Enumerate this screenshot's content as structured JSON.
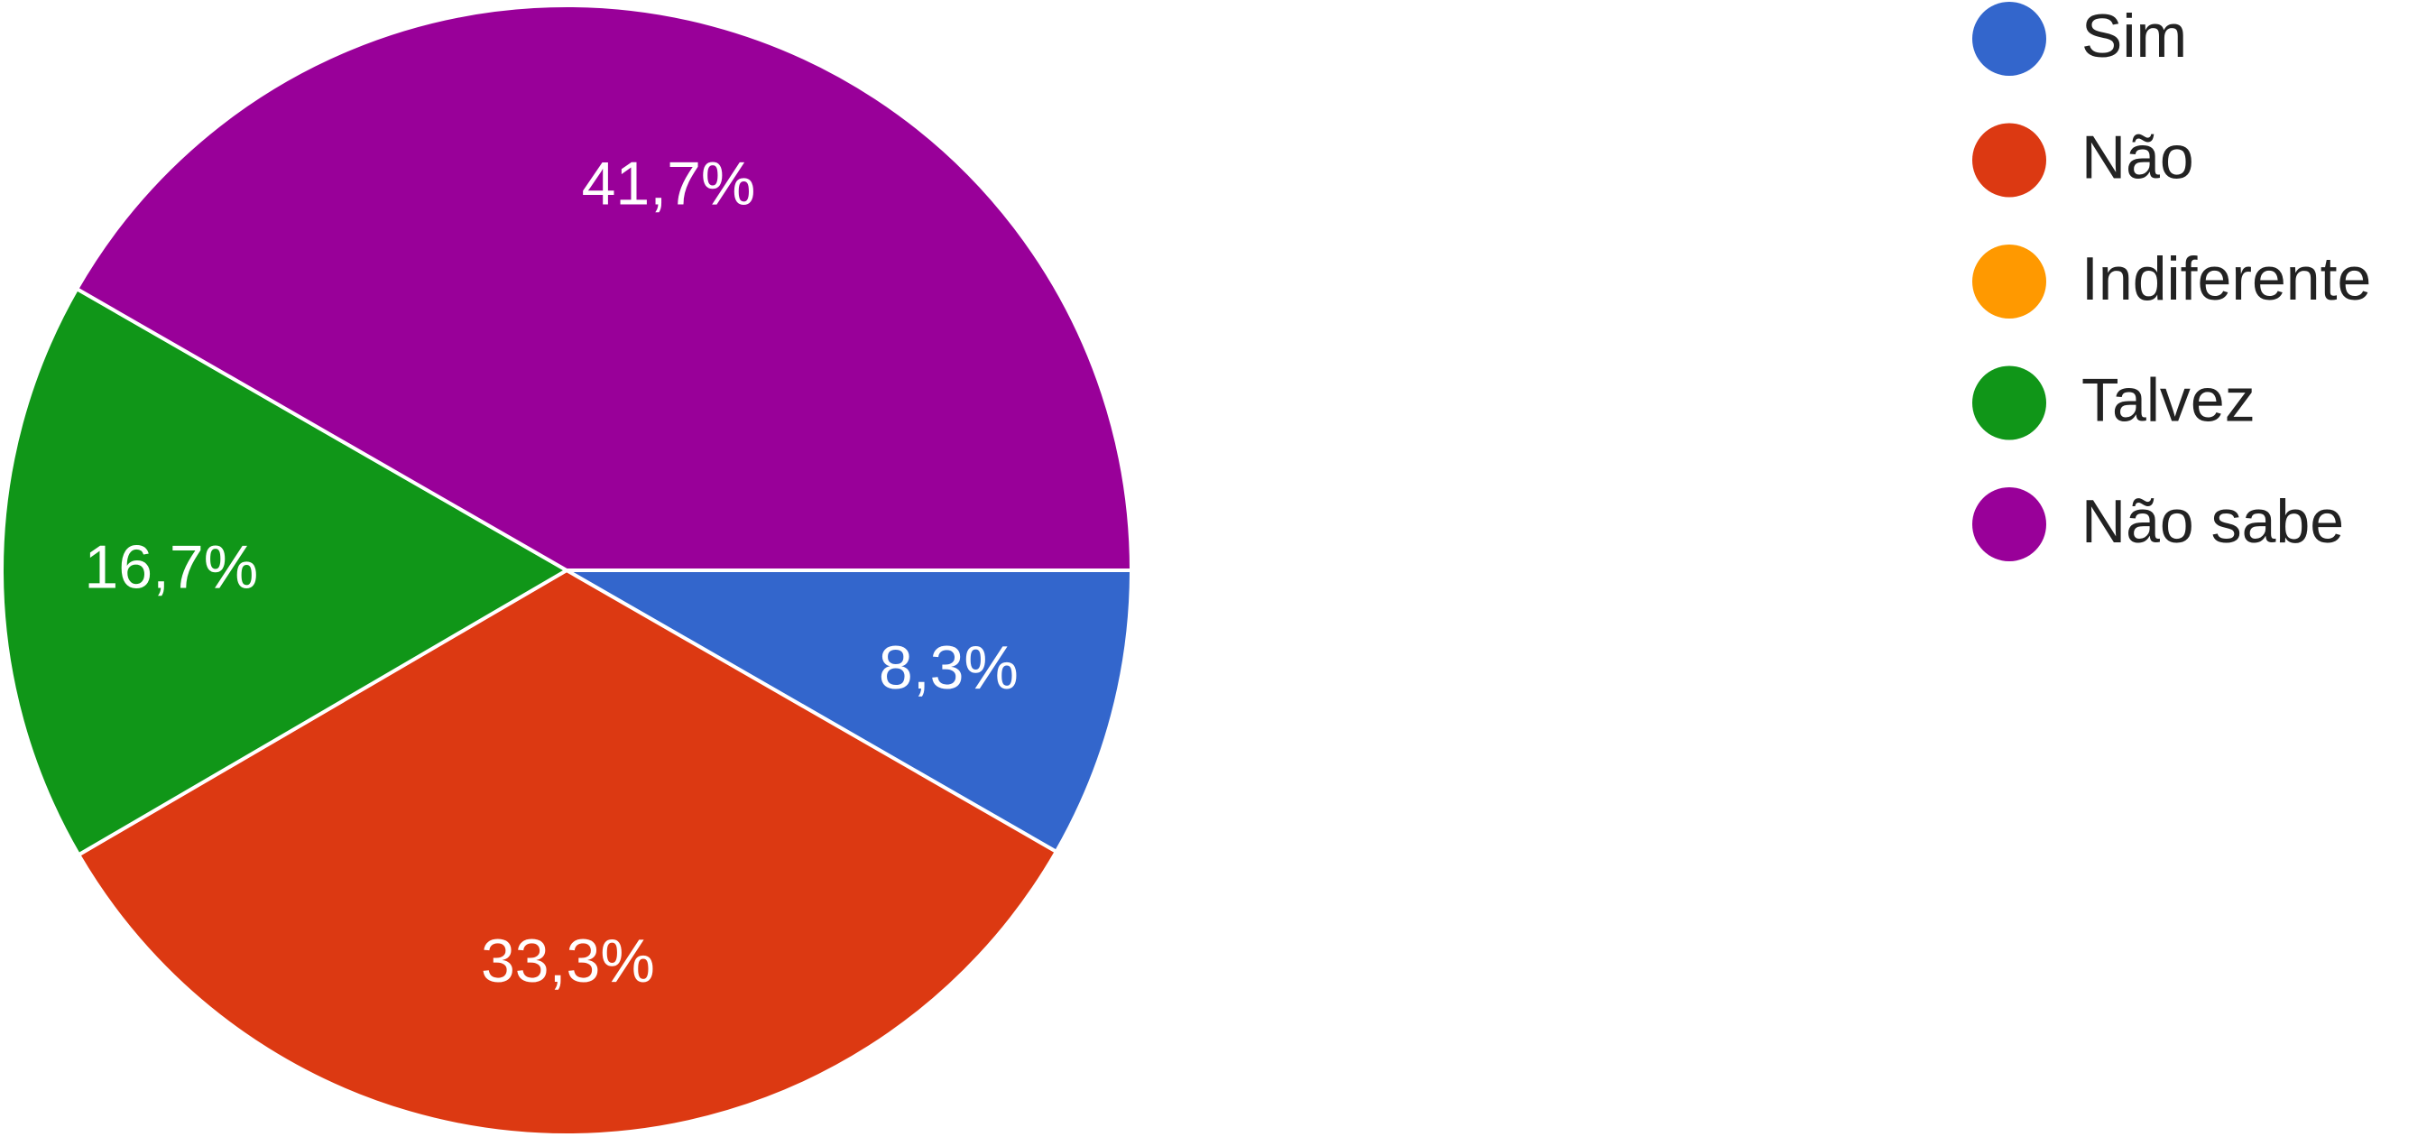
{
  "chart_data": {
    "type": "pie",
    "categories": [
      "Sim",
      "Não",
      "Indiferente",
      "Talvez",
      "Não sabe"
    ],
    "values": [
      8.3,
      33.3,
      0,
      16.7,
      41.7
    ],
    "value_labels": [
      "8,3%",
      "33,3%",
      null,
      "16,7%",
      "41,7%"
    ],
    "colors": [
      "#3366cc",
      "#dc3912",
      "#ff9900",
      "#109618",
      "#990099"
    ],
    "legend": "right"
  }
}
